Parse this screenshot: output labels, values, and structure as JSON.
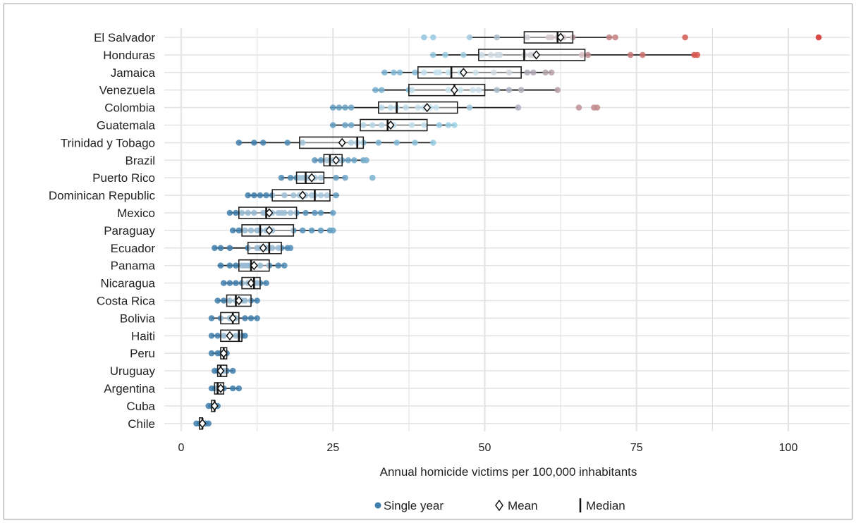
{
  "chart_data": {
    "type": "boxplot",
    "title": "",
    "xlabel": "Annual homicide  victims per 100,000 inhabitants",
    "ylabel": "",
    "xlim": [
      -2,
      110
    ],
    "xticks": [
      0,
      25,
      50,
      75,
      100
    ],
    "xtick_labels": [
      "0",
      "25",
      "50",
      "75",
      "100"
    ],
    "grid": true,
    "legend_position": "bottom",
    "legend": [
      {
        "symbol": "circle",
        "label": "Single year"
      },
      {
        "symbol": "diamond",
        "label": "Mean"
      },
      {
        "symbol": "bar",
        "label": "Median"
      }
    ],
    "colors": {
      "low": "#3f7fad",
      "mid": "#9fd3e8",
      "high": "#d9534a",
      "top": "#d42a26",
      "box": "#222222",
      "grid": "#e4e4e4"
    },
    "categories": [
      "El Salvador",
      "Honduras",
      "Jamaica",
      "Venezuela",
      "Colombia",
      "Guatemala",
      "Trinidad y Tobago",
      "Brazil",
      "Puerto Rico",
      "Dominican Republic",
      "Mexico",
      "Paraguay",
      "Ecuador",
      "Panama",
      "Nicaragua",
      "Costa Rica",
      "Bolivia",
      "Haiti",
      "Peru",
      "Uruguay",
      "Argentina",
      "Cuba",
      "Chile"
    ],
    "boxes": [
      {
        "min": 47.5,
        "q1": 56.5,
        "median": 62,
        "q3": 64.5,
        "max": 71,
        "mean": 62.5
      },
      {
        "min": 41,
        "q1": 49,
        "median": 56.5,
        "q3": 66.5,
        "max": 85,
        "mean": 58.5
      },
      {
        "min": 33,
        "q1": 39,
        "median": 44.5,
        "q3": 56,
        "max": 61,
        "mean": 46.5
      },
      {
        "min": 31.5,
        "q1": 37.5,
        "median": 45,
        "q3": 50,
        "max": 62,
        "mean": 45
      },
      {
        "min": 24.5,
        "q1": 32.5,
        "median": 35.5,
        "q3": 45.5,
        "max": 55.5,
        "mean": 40.5
      },
      {
        "min": 24.5,
        "q1": 29.5,
        "median": 34,
        "q3": 40.5,
        "max": 45,
        "mean": 34.5
      },
      {
        "min": 9.5,
        "q1": 19.5,
        "median": 29,
        "q3": 30,
        "max": 41.5,
        "mean": 26.5
      },
      {
        "min": 22,
        "q1": 23.5,
        "median": 24.5,
        "q3": 26.5,
        "max": 30,
        "mean": 25.5
      },
      {
        "min": 16.5,
        "q1": 19,
        "median": 20.5,
        "q3": 23.5,
        "max": 27,
        "mean": 21.5
      },
      {
        "min": 11,
        "q1": 15,
        "median": 22,
        "q3": 24.5,
        "max": 26,
        "mean": 20
      },
      {
        "min": 8,
        "q1": 9.5,
        "median": 14,
        "q3": 19,
        "max": 25,
        "mean": 14.5
      },
      {
        "min": 8.5,
        "q1": 10,
        "median": 13,
        "q3": 18.5,
        "max": 25,
        "mean": 14.5
      },
      {
        "min": 5.5,
        "q1": 11,
        "median": 14.5,
        "q3": 16.5,
        "max": 18,
        "mean": 13.5
      },
      {
        "min": 6,
        "q1": 9.5,
        "median": 11.5,
        "q3": 14.5,
        "max": 17,
        "mean": 12
      },
      {
        "min": 7,
        "q1": 10,
        "median": 12,
        "q3": 13,
        "max": 14,
        "mean": 11.5
      },
      {
        "min": 6,
        "q1": 7.5,
        "median": 9,
        "q3": 11.5,
        "max": 12.5,
        "mean": 9.5
      },
      {
        "min": 5,
        "q1": 6.5,
        "median": 8.5,
        "q3": 9.5,
        "max": 12.5,
        "mean": 8.5
      },
      {
        "min": 5,
        "q1": 6.5,
        "median": 9.5,
        "q3": 10,
        "max": 10.5,
        "mean": 8
      },
      {
        "min": 5,
        "q1": 6.5,
        "median": 7,
        "q3": 7.5,
        "max": 7.5,
        "mean": 7
      },
      {
        "min": 5.5,
        "q1": 6,
        "median": 6.5,
        "q3": 7.5,
        "max": 8.5,
        "mean": 6.5
      },
      {
        "min": 5,
        "q1": 5.5,
        "median": 6,
        "q3": 7,
        "max": 9.5,
        "mean": 6.5
      },
      {
        "min": 4.5,
        "q1": 5,
        "median": 5.5,
        "q3": 5.5,
        "max": 6,
        "mean": 5.5
      },
      {
        "min": 2.5,
        "q1": 3,
        "median": 3.5,
        "q3": 3.5,
        "max": 4.5,
        "mean": 3.5
      }
    ],
    "points": [
      [
        40,
        41.5,
        47.5,
        52,
        57,
        60.5,
        61,
        62,
        63,
        64.5,
        70.5,
        71.5,
        83,
        105
      ],
      [
        41.5,
        43.5,
        46.5,
        49.5,
        51,
        52,
        52.5,
        56.5,
        57.5,
        58,
        66,
        67,
        74,
        76,
        84.5,
        85
      ],
      [
        33.5,
        35,
        36,
        38.5,
        40,
        42,
        42.5,
        44,
        46,
        48.5,
        51.5,
        54,
        57,
        58,
        60,
        61
      ],
      [
        32,
        33,
        37.5,
        38,
        44,
        45,
        46,
        48,
        49,
        52,
        54,
        56,
        62
      ],
      [
        25,
        26,
        27,
        28,
        33,
        34.5,
        35.5,
        37,
        39,
        40,
        41,
        42,
        47.5,
        55.5,
        65.5,
        68,
        68.5
      ],
      [
        25,
        27,
        28,
        30,
        31.5,
        33,
        34.5,
        35,
        38,
        40,
        42.5,
        44,
        45
      ],
      [
        9.5,
        12,
        13.5,
        17.5,
        20,
        28,
        29,
        30,
        32.5,
        35.5,
        38.5,
        41.5
      ],
      [
        22,
        23,
        24,
        25,
        25.5,
        26,
        26.5,
        27.5,
        28.5,
        30,
        30.5
      ],
      [
        16.5,
        18,
        19,
        19.5,
        20,
        20.5,
        21,
        22,
        23,
        25.5,
        27,
        31.5
      ],
      [
        11,
        12,
        13,
        14,
        15,
        17,
        18.5,
        19.5,
        20.5,
        21.5,
        22,
        23,
        24,
        25.5
      ],
      [
        8,
        9,
        10,
        11,
        12,
        13.5,
        14,
        15,
        16,
        16.5,
        17,
        18,
        19,
        20.5,
        22,
        23,
        25
      ],
      [
        8.5,
        9.5,
        10.5,
        11.5,
        12.5,
        13,
        14,
        15,
        18.5,
        20,
        21.5,
        23,
        24.5,
        25
      ],
      [
        5.5,
        6.5,
        8,
        11,
        12.5,
        13,
        14,
        14.5,
        15,
        16,
        16.5,
        17.5,
        18
      ],
      [
        6.5,
        8,
        9,
        10,
        10.5,
        11,
        11.5,
        12,
        13,
        14.5,
        16,
        17
      ],
      [
        7,
        8,
        9,
        10,
        11,
        11.5,
        12,
        12.5,
        13,
        14
      ],
      [
        6,
        7,
        8,
        9,
        10,
        10.5,
        11.5,
        12.5
      ],
      [
        5,
        6.5,
        8,
        8.5,
        9,
        10.5,
        11.5,
        12.5
      ],
      [
        5,
        6,
        7,
        8,
        9,
        10,
        10.5
      ],
      [
        5,
        6,
        6.5,
        7,
        7.5
      ],
      [
        5.5,
        6,
        6.5,
        7,
        7.5,
        8.5
      ],
      [
        5,
        5.5,
        6,
        6.5,
        7,
        8.5,
        9.5
      ],
      [
        4.5,
        5,
        5.5,
        6
      ],
      [
        2.5,
        3,
        3.5,
        4,
        4.5
      ]
    ]
  }
}
